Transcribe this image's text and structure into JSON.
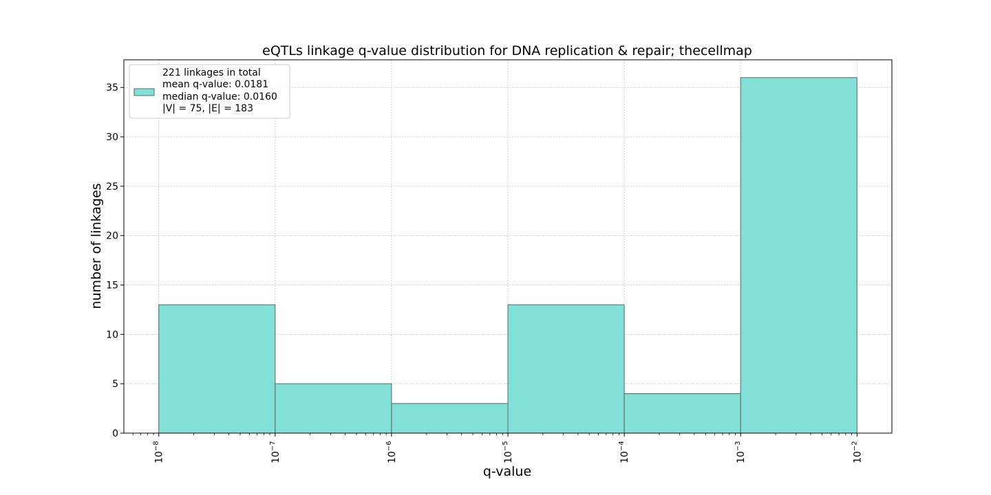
{
  "chart_data": {
    "type": "bar",
    "title": "eQTLs linkage q-value distribution for DNA replication & repair; thecellmap",
    "xlabel": "q-value",
    "ylabel": "number of linkages",
    "x_scale": "log",
    "bin_edges_exponent": [
      -8,
      -7,
      -6,
      -5,
      -4,
      -3,
      -2
    ],
    "bins": [
      {
        "from": "1e-8",
        "to": "1e-7",
        "value": 13
      },
      {
        "from": "1e-7",
        "to": "1e-6",
        "value": 5
      },
      {
        "from": "1e-6",
        "to": "1e-5",
        "value": 3
      },
      {
        "from": "1e-5",
        "to": "1e-4",
        "value": 13
      },
      {
        "from": "1e-4",
        "to": "1e-3",
        "value": 4
      },
      {
        "from": "1e-3",
        "to": "1e-2",
        "value": 36
      }
    ],
    "xlim_exponent": [
      -8.3,
      -1.7
    ],
    "ylim": [
      0,
      37.8
    ],
    "yticks": [
      0,
      5,
      10,
      15,
      20,
      25,
      30,
      35
    ],
    "xtick_labels": [
      "10",
      "10",
      "10",
      "10",
      "10",
      "10",
      "10"
    ],
    "xtick_exponents": [
      "−8",
      "−7",
      "−6",
      "−5",
      "−4",
      "−3",
      "−2"
    ],
    "grid": true,
    "legend_position": "top-left",
    "legend_lines": [
      "221 linkages in total",
      "mean q-value: 0.0181",
      "median q-value: 0.0160",
      "|V| = 75, |E| = 183"
    ],
    "colors": {
      "bar_fill": "#83e0d6",
      "bar_edge": "#4d6b66",
      "grid": "#cccccc",
      "axes": "#000000"
    }
  }
}
